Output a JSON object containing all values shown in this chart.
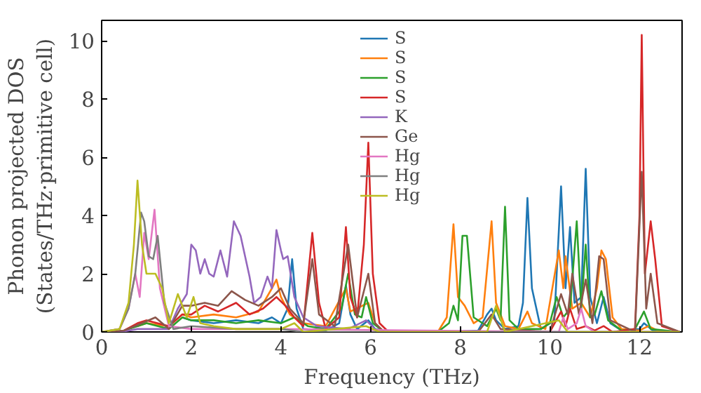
{
  "chart_data": {
    "type": "line",
    "xlabel": "Frequency (THz)",
    "ylabel": "Phonon projected DOS\n(States/THz·primitive cell)",
    "xlim": [
      0,
      12.95
    ],
    "ylim": [
      0,
      10.7
    ],
    "xticks": [
      0,
      2,
      4,
      6,
      8,
      10,
      12
    ],
    "yticks": [
      0,
      2,
      4,
      6,
      8,
      10
    ],
    "legend": "top",
    "grid": false,
    "series": [
      {
        "name": "S",
        "color": "#1f77b4",
        "x": [
          1.8,
          2.0,
          2.5,
          3.0,
          3.5,
          3.8,
          4.0,
          4.15,
          4.25,
          4.35,
          4.5,
          5.0,
          5.3,
          5.45,
          5.55,
          5.7,
          5.95,
          6.1,
          6.3,
          7.6,
          8.4,
          8.6,
          8.7,
          8.8,
          9.0,
          9.3,
          9.4,
          9.5,
          9.6,
          9.8,
          10.1,
          10.25,
          10.35,
          10.45,
          10.55,
          10.7,
          10.8,
          10.9,
          11.05,
          11.2,
          11.35,
          11.6,
          12.0,
          12.1,
          12.3,
          12.9
        ],
        "values": [
          0.5,
          0.4,
          0.3,
          0.4,
          0.3,
          0.5,
          0.3,
          0.8,
          2.5,
          0.8,
          0.1,
          0.05,
          0.3,
          1.6,
          0.6,
          0.1,
          0.4,
          0.1,
          0,
          0,
          0.05,
          0.6,
          0.8,
          0.4,
          0.1,
          0.2,
          1.0,
          4.6,
          1.5,
          0.1,
          0.4,
          5.0,
          1.5,
          3.6,
          1.0,
          1.2,
          5.6,
          1.2,
          0.3,
          1.2,
          0.3,
          0.05,
          0.1,
          0.3,
          0.05,
          0
        ]
      },
      {
        "name": "S",
        "color": "#ff7f0e",
        "x": [
          0.8,
          1.0,
          1.5,
          1.8,
          2.0,
          2.5,
          3.0,
          3.5,
          3.8,
          3.9,
          4.0,
          4.2,
          4.5,
          5.0,
          5.45,
          5.55,
          5.95,
          6.1,
          6.3,
          7.5,
          7.7,
          7.85,
          7.95,
          8.1,
          8.3,
          8.5,
          8.7,
          8.8,
          9.0,
          9.3,
          9.5,
          9.6,
          9.9,
          10.2,
          10.3,
          10.35,
          10.5,
          10.7,
          10.9,
          11.05,
          11.15,
          11.25,
          11.4,
          11.6,
          12.0,
          12.2,
          12.4,
          12.9
        ],
        "values": [
          0.2,
          0.3,
          0.2,
          0.6,
          0.5,
          0.6,
          0.5,
          0.7,
          1.5,
          1.8,
          1.2,
          0.6,
          0.3,
          0.2,
          1.5,
          0.7,
          1.0,
          0.3,
          0,
          0,
          0.5,
          3.7,
          1.2,
          0.9,
          0.3,
          0.5,
          3.8,
          1.0,
          0.2,
          0.1,
          0.7,
          0.3,
          0.1,
          2.8,
          1.5,
          2.6,
          0.8,
          1.0,
          0.5,
          1.5,
          2.8,
          2.5,
          0.5,
          0.1,
          0.05,
          0.2,
          0.05,
          0
        ]
      },
      {
        "name": "S",
        "color": "#2ca02c",
        "x": [
          0,
          0.5,
          0.8,
          1.0,
          1.5,
          1.8,
          2.0,
          2.5,
          3.0,
          3.5,
          4.0,
          4.3,
          4.6,
          5.0,
          5.35,
          5.5,
          5.65,
          5.8,
          5.9,
          6.05,
          6.3,
          7.5,
          7.75,
          7.85,
          7.95,
          8.05,
          8.15,
          8.3,
          8.6,
          8.8,
          8.9,
          9.0,
          9.1,
          9.3,
          9.8,
          10.0,
          10.15,
          10.3,
          10.45,
          10.6,
          10.7,
          10.8,
          10.9,
          11.0,
          11.15,
          11.3,
          11.6,
          11.9,
          12.1,
          12.25,
          12.9
        ],
        "values": [
          0,
          0.05,
          0.2,
          0.3,
          0.1,
          0.5,
          0.4,
          0.4,
          0.3,
          0.4,
          0.3,
          0.5,
          0.2,
          0.1,
          0.8,
          2.0,
          0.6,
          0.5,
          1.2,
          0.3,
          0,
          0,
          0.3,
          0.9,
          0.4,
          3.3,
          3.3,
          0.5,
          0.2,
          0.8,
          0.4,
          4.3,
          0.4,
          0.1,
          0.1,
          0.3,
          1.2,
          0.5,
          0.8,
          3.8,
          0.8,
          3.0,
          0.5,
          0.6,
          1.4,
          0.4,
          0.05,
          0.1,
          0.7,
          0.1,
          0
        ]
      },
      {
        "name": "S",
        "color": "#d62728",
        "x": [
          0,
          0.5,
          0.8,
          1.0,
          1.5,
          1.8,
          2.0,
          2.3,
          2.6,
          3.0,
          3.3,
          3.6,
          3.9,
          4.1,
          4.3,
          4.5,
          4.7,
          4.85,
          5.0,
          5.3,
          5.45,
          5.55,
          5.7,
          5.85,
          5.95,
          6.05,
          6.2,
          6.4,
          10.0,
          10.25,
          10.35,
          10.45,
          10.6,
          10.8,
          11.0,
          11.2,
          11.4,
          11.9,
          12.0,
          12.05,
          12.12,
          12.25,
          12.35,
          12.5,
          12.9
        ],
        "values": [
          0,
          0.05,
          0.3,
          0.4,
          0.2,
          0.6,
          0.6,
          0.9,
          0.7,
          1.0,
          0.6,
          0.8,
          1.2,
          0.9,
          0.5,
          0.2,
          3.4,
          1.0,
          0.1,
          0.5,
          3.6,
          1.2,
          0.5,
          3.0,
          6.5,
          2.0,
          0.3,
          0,
          0,
          0.7,
          0.2,
          0.8,
          0.1,
          0.2,
          0.05,
          0.2,
          0,
          0.1,
          4.0,
          10.2,
          2.0,
          3.8,
          2.5,
          0.2,
          0
        ]
      },
      {
        "name": "K",
        "color": "#9467bd",
        "x": [
          0,
          0.5,
          0.8,
          1.0,
          1.5,
          1.7,
          1.9,
          2.0,
          2.1,
          2.2,
          2.3,
          2.4,
          2.5,
          2.65,
          2.8,
          2.95,
          3.1,
          3.3,
          3.4,
          3.55,
          3.7,
          3.8,
          3.9,
          4.0,
          4.05,
          4.15,
          4.3,
          4.5,
          4.8,
          5.5,
          5.9,
          6.1,
          6.4,
          12.9
        ],
        "values": [
          0,
          0.02,
          0.1,
          0.1,
          0.1,
          0.8,
          1.3,
          3.0,
          2.8,
          2.0,
          2.5,
          2.0,
          1.9,
          2.8,
          1.9,
          3.8,
          3.3,
          1.9,
          1.0,
          1.2,
          1.9,
          1.5,
          3.5,
          2.8,
          2.5,
          2.6,
          1.2,
          0.5,
          0.2,
          0.1,
          0.4,
          0.1,
          0,
          0
        ]
      },
      {
        "name": "Ge",
        "color": "#8c564b",
        "x": [
          0,
          0.5,
          0.9,
          1.2,
          1.5,
          1.8,
          2.0,
          2.3,
          2.6,
          2.9,
          3.2,
          3.5,
          3.8,
          4.0,
          4.2,
          4.5,
          4.7,
          4.85,
          5.2,
          5.5,
          5.7,
          5.95,
          6.1,
          6.3,
          8.4,
          8.7,
          8.9,
          10.0,
          10.25,
          10.4,
          10.5,
          10.65,
          10.8,
          10.95,
          11.1,
          11.2,
          11.35,
          11.9,
          12.05,
          12.15,
          12.25,
          12.4,
          12.9
        ],
        "values": [
          0,
          0.05,
          0.3,
          0.5,
          0.1,
          0.9,
          0.9,
          1.0,
          0.9,
          1.4,
          1.1,
          0.9,
          1.2,
          1.5,
          0.8,
          0.3,
          2.5,
          0.6,
          0.2,
          3.0,
          0.5,
          2.0,
          0.3,
          0,
          0,
          0.6,
          0.1,
          0,
          1.3,
          0.6,
          2.0,
          0.6,
          1.8,
          0.3,
          2.6,
          2.5,
          0.4,
          0,
          5.5,
          0.8,
          2.0,
          0.3,
          0
        ]
      },
      {
        "name": "Hg",
        "color": "#e377c2",
        "x": [
          0,
          0.4,
          0.6,
          0.75,
          0.85,
          0.95,
          1.05,
          1.18,
          1.3,
          1.5,
          2.0,
          3.0,
          4.0,
          10.2,
          10.3,
          10.4,
          10.6,
          10.7,
          10.8,
          11.0,
          12.9
        ],
        "values": [
          0,
          0.1,
          0.8,
          2.0,
          1.2,
          3.4,
          2.5,
          4.2,
          1.5,
          0.2,
          0.1,
          0.1,
          0.1,
          0,
          0.5,
          0.1,
          0.3,
          0.8,
          0.2,
          0,
          0
        ]
      },
      {
        "name": "Hg",
        "color": "#7f7f7f",
        "x": [
          0,
          0.4,
          0.6,
          0.75,
          0.88,
          0.95,
          1.05,
          1.15,
          1.25,
          1.4,
          1.6,
          2.0,
          3.0,
          4.0,
          4.5,
          12.9
        ],
        "values": [
          0,
          0.1,
          0.8,
          2.0,
          4.1,
          3.8,
          2.6,
          2.5,
          3.3,
          1.0,
          0.1,
          0.2,
          0.1,
          0.1,
          0,
          0
        ]
      },
      {
        "name": "Hg",
        "color": "#bcbd22",
        "x": [
          0,
          0.4,
          0.6,
          0.72,
          0.8,
          0.9,
          1.0,
          1.2,
          1.35,
          1.5,
          1.7,
          1.9,
          2.05,
          2.2,
          2.5,
          3.0,
          4.0,
          4.3,
          4.5,
          5.9,
          6.2,
          8.6,
          8.8,
          9.0,
          10.2,
          10.4,
          12.9
        ],
        "values": [
          0,
          0.1,
          1.0,
          3.0,
          5.2,
          3.0,
          2.0,
          2.0,
          1.5,
          0.3,
          1.3,
          0.5,
          1.2,
          0.3,
          0.2,
          0.1,
          0.1,
          0.3,
          0,
          0.2,
          0,
          0,
          0.9,
          0,
          0.4,
          0,
          0
        ]
      }
    ]
  }
}
